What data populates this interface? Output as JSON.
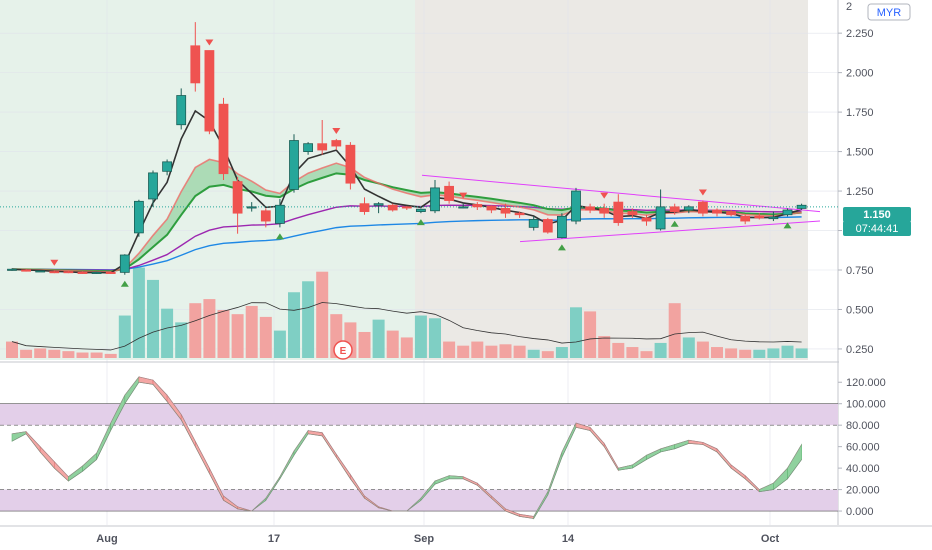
{
  "currency": "MYR",
  "last_price": "1.150",
  "countdown": "07:44:41",
  "earnings_marker": "E",
  "colors": {
    "up": "#26a69a",
    "down": "#ef5350",
    "bg_left": "#dff0e6",
    "bg_right": "#ebe9e5",
    "ema_fast": "#333333",
    "ema_ribbon": "#2e9e3e",
    "ema_ribbon_slow": "#ef5350",
    "sma_purple": "#9c27b0",
    "sma_blue": "#1e88e5",
    "triangle": "#e040fb",
    "osc_band": "#e3cfe9"
  },
  "chart_data": [
    {
      "type": "candlestick",
      "title": "",
      "y_ticks": [
        "2.250",
        "2.000",
        "1.750",
        "1.500",
        "1.250",
        "1.000",
        "0.750",
        "0.500",
        "0.250"
      ],
      "y_tick_values": [
        2.25,
        2.0,
        1.75,
        1.5,
        1.25,
        1.0,
        0.75,
        0.5,
        0.25
      ],
      "top_tick_partial": "2",
      "x_ticks": [
        "Aug",
        "17",
        "Sep",
        "14",
        "Oct"
      ],
      "ylim": [
        0.18,
        2.46
      ],
      "candles": [
        [
          0.755,
          0.755,
          0.76,
          0.745
        ],
        [
          0.75,
          0.745,
          0.755,
          0.74
        ],
        [
          0.745,
          0.745,
          0.745,
          0.745
        ],
        [
          0.74,
          0.735,
          0.745,
          0.73
        ],
        [
          0.74,
          0.735,
          0.745,
          0.73
        ],
        [
          0.735,
          0.73,
          0.74,
          0.725
        ],
        [
          0.73,
          0.735,
          0.74,
          0.725
        ],
        [
          0.735,
          0.73,
          0.74,
          0.725
        ],
        [
          0.735,
          0.845,
          0.85,
          0.72
        ],
        [
          0.985,
          1.185,
          1.195,
          0.96
        ],
        [
          1.2,
          1.365,
          1.38,
          1.15
        ],
        [
          1.375,
          1.435,
          1.45,
          1.35
        ],
        [
          1.67,
          1.855,
          1.9,
          1.64
        ],
        [
          2.17,
          1.935,
          2.32,
          1.88
        ],
        [
          2.14,
          1.63,
          2.14,
          1.61
        ],
        [
          1.8,
          1.36,
          1.84,
          1.32
        ],
        [
          1.31,
          1.11,
          1.34,
          0.98
        ],
        [
          1.15,
          1.15,
          1.18,
          1.12
        ],
        [
          1.125,
          1.06,
          1.14,
          1.02
        ],
        [
          1.045,
          1.16,
          1.2,
          1.02
        ],
        [
          1.26,
          1.57,
          1.61,
          1.24
        ],
        [
          1.5,
          1.55,
          1.56,
          1.48
        ],
        [
          1.55,
          1.51,
          1.7,
          1.48
        ],
        [
          1.57,
          1.535,
          1.58,
          1.51
        ],
        [
          1.54,
          1.3,
          1.56,
          1.26
        ],
        [
          1.17,
          1.12,
          1.21,
          1.1
        ],
        [
          1.16,
          1.17,
          1.18,
          1.11
        ],
        [
          1.16,
          1.13,
          1.17,
          1.12
        ],
        [
          1.15,
          1.145,
          1.155,
          1.13
        ],
        [
          1.12,
          1.135,
          1.14,
          1.11
        ],
        [
          1.125,
          1.27,
          1.32,
          1.11
        ],
        [
          1.28,
          1.19,
          1.31,
          1.17
        ],
        [
          1.15,
          1.15,
          1.17,
          1.14
        ],
        [
          1.165,
          1.15,
          1.18,
          1.13
        ],
        [
          1.155,
          1.13,
          1.16,
          1.11
        ],
        [
          1.14,
          1.11,
          1.17,
          1.08
        ],
        [
          1.11,
          1.1,
          1.12,
          1.08
        ],
        [
          1.02,
          1.07,
          1.09,
          1.0
        ],
        [
          1.07,
          0.99,
          1.08,
          0.98
        ],
        [
          0.955,
          1.09,
          1.11,
          0.95
        ],
        [
          1.06,
          1.25,
          1.27,
          1.04
        ],
        [
          1.15,
          1.13,
          1.17,
          1.11
        ],
        [
          1.14,
          1.11,
          1.17,
          1.08
        ],
        [
          1.18,
          1.05,
          1.23,
          1.03
        ],
        [
          1.12,
          1.1,
          1.14,
          1.08
        ],
        [
          1.08,
          1.06,
          1.1,
          1.03
        ],
        [
          1.01,
          1.15,
          1.26,
          1.0
        ],
        [
          1.15,
          1.12,
          1.17,
          1.1
        ],
        [
          1.13,
          1.15,
          1.16,
          1.11
        ],
        [
          1.18,
          1.11,
          1.19,
          1.09
        ],
        [
          1.13,
          1.11,
          1.14,
          1.09
        ],
        [
          1.12,
          1.1,
          1.13,
          1.09
        ],
        [
          1.09,
          1.06,
          1.1,
          1.04
        ],
        [
          1.09,
          1.08,
          1.11,
          1.07
        ],
        [
          1.075,
          1.085,
          1.12,
          1.06
        ],
        [
          1.1,
          1.13,
          1.14,
          1.09
        ],
        [
          1.14,
          1.16,
          1.17,
          1.13
        ]
      ],
      "volume_dir": [
        0,
        0,
        0,
        0,
        0,
        0,
        0,
        0,
        1,
        1,
        1,
        1,
        1,
        0,
        0,
        0,
        0,
        0,
        0,
        1,
        1,
        1,
        0,
        0,
        0,
        0,
        1,
        0,
        0,
        1,
        1,
        0,
        0,
        0,
        0,
        0,
        0,
        1,
        0,
        1,
        1,
        0,
        0,
        0,
        0,
        0,
        1,
        0,
        1,
        0,
        0,
        0,
        0,
        1,
        1,
        1,
        1
      ],
      "volume_rel": [
        12,
        6,
        7,
        6,
        5,
        4,
        4,
        3,
        31,
        66,
        57,
        36,
        26,
        40,
        43,
        35,
        32,
        38,
        30,
        20,
        48,
        56,
        63,
        32,
        26,
        19,
        28,
        20,
        15,
        31,
        29,
        12,
        9,
        12,
        9,
        10,
        9,
        6,
        5,
        8,
        37,
        34,
        16,
        11,
        8,
        5,
        11,
        40,
        15,
        12,
        8,
        7,
        6,
        6,
        7,
        9,
        7
      ],
      "arrow_down": [
        3,
        14,
        23,
        32,
        42,
        49
      ],
      "arrow_up": [
        8,
        19,
        29,
        39,
        47,
        55
      ]
    },
    {
      "type": "line",
      "title": "",
      "y_ticks": [
        "120.000",
        "100.000",
        "80.000",
        "60.000",
        "40.000",
        "20.000",
        "0.000"
      ],
      "y_tick_values": [
        120,
        100,
        80,
        60,
        40,
        20,
        0
      ],
      "ylim": [
        -13,
        137
      ],
      "bands": [
        [
          100,
          80
        ],
        [
          20,
          0
        ]
      ],
      "series": [
        {
          "values": [
            65,
            72,
            55,
            40,
            28,
            37,
            48,
            75,
            100,
            120,
            118,
            102,
            85,
            60,
            35,
            10,
            2,
            0,
            10,
            30,
            52,
            72,
            70,
            50,
            30,
            12,
            3,
            0,
            0,
            10,
            25,
            30,
            30,
            24,
            12,
            0,
            -5,
            -7,
            15,
            50,
            78,
            75,
            60,
            38,
            40,
            48,
            55,
            58,
            63,
            62,
            55,
            40,
            30,
            18,
            20,
            30,
            48
          ]
        },
        {
          "values": [
            72,
            74,
            60,
            46,
            32,
            42,
            54,
            82,
            108,
            125,
            122,
            108,
            90,
            65,
            40,
            14,
            4,
            0,
            12,
            32,
            56,
            75,
            73,
            53,
            34,
            14,
            4,
            0,
            0,
            12,
            28,
            33,
            32,
            26,
            14,
            2,
            -3,
            -5,
            18,
            55,
            82,
            78,
            63,
            40,
            43,
            52,
            58,
            62,
            66,
            64,
            58,
            43,
            33,
            20,
            26,
            40,
            62
          ]
        }
      ]
    }
  ]
}
